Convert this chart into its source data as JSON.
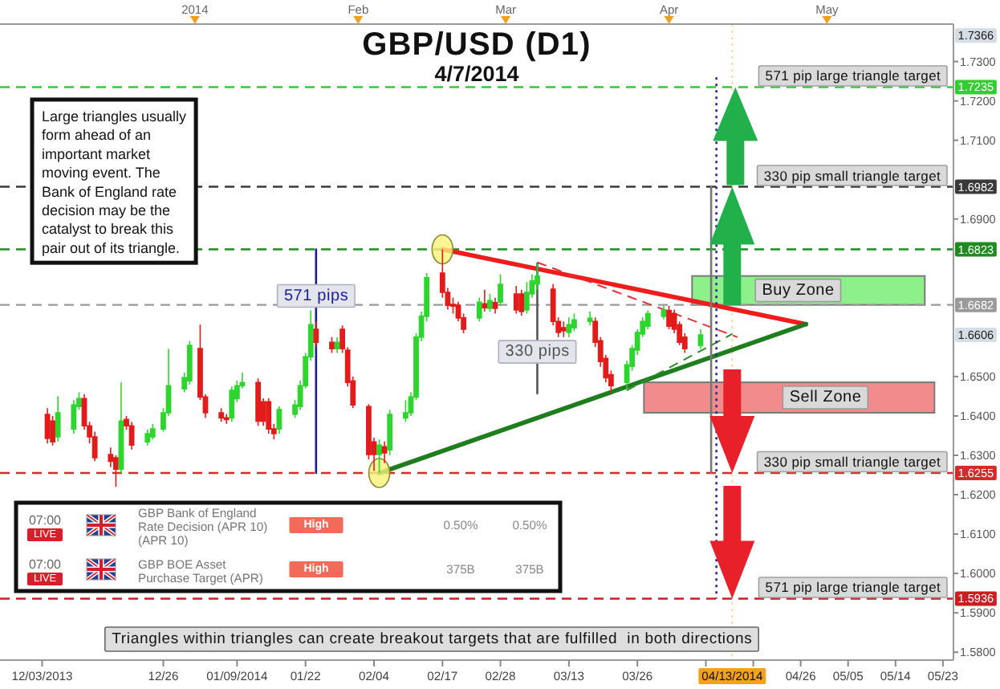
{
  "chart_data": [
    {
      "type": "candlestick",
      "title": "GBP/USD (D1)",
      "subtitle": "4/7/2014",
      "x": [
        "2013-12-04",
        "2013-12-05",
        "2013-12-06",
        "2013-12-09",
        "2013-12-10",
        "2013-12-11",
        "2013-12-12",
        "2013-12-13",
        "2013-12-16",
        "2013-12-17",
        "2013-12-18",
        "2013-12-19",
        "2013-12-20",
        "2013-12-23",
        "2013-12-24",
        "2013-12-26",
        "2013-12-27",
        "2013-12-30",
        "2013-12-31",
        "2014-01-02",
        "2014-01-03",
        "2014-01-06",
        "2014-01-07",
        "2014-01-08",
        "2014-01-09",
        "2014-01-10",
        "2014-01-13",
        "2014-01-14",
        "2014-01-15",
        "2014-01-16",
        "2014-01-17",
        "2014-01-20",
        "2014-01-21",
        "2014-01-22",
        "2014-01-23",
        "2014-01-24",
        "2014-01-27",
        "2014-01-28",
        "2014-01-29",
        "2014-01-30",
        "2014-01-31",
        "2014-02-03",
        "2014-02-04",
        "2014-02-05",
        "2014-02-06",
        "2014-02-07",
        "2014-02-10",
        "2014-02-11",
        "2014-02-12",
        "2014-02-13",
        "2014-02-14",
        "2014-02-17",
        "2014-02-18",
        "2014-02-19",
        "2014-02-20",
        "2014-02-21",
        "2014-02-24",
        "2014-02-25",
        "2014-02-26",
        "2014-02-27",
        "2014-02-28",
        "2014-03-03",
        "2014-03-04",
        "2014-03-05",
        "2014-03-06",
        "2014-03-07",
        "2014-03-10",
        "2014-03-11",
        "2014-03-12",
        "2014-03-13",
        "2014-03-14",
        "2014-03-17",
        "2014-03-18",
        "2014-03-19",
        "2014-03-20",
        "2014-03-21",
        "2014-03-24",
        "2014-03-25",
        "2014-03-26",
        "2014-03-27",
        "2014-03-28",
        "2014-03-31",
        "2014-04-01",
        "2014-04-02",
        "2014-04-03",
        "2014-04-04",
        "2014-04-07"
      ],
      "ohlc": [
        [
          1.6404,
          1.642,
          1.633,
          1.6343
        ],
        [
          1.6387,
          1.64,
          1.6325,
          1.6334
        ],
        [
          1.6347,
          1.645,
          1.6335,
          1.6408
        ],
        [
          1.6367,
          1.644,
          1.6355,
          1.6428
        ],
        [
          1.6424,
          1.646,
          1.6415,
          1.6444
        ],
        [
          1.6444,
          1.6455,
          1.6365,
          1.6375
        ],
        [
          1.6375,
          1.6385,
          1.633,
          1.6347
        ],
        [
          1.6347,
          1.636,
          1.6285,
          1.6294
        ],
        [
          1.6302,
          1.632,
          1.627,
          1.6285
        ],
        [
          1.6294,
          1.63,
          1.622,
          1.6265
        ],
        [
          1.6265,
          1.6485,
          1.6255,
          1.6387
        ],
        [
          1.6391,
          1.64,
          1.6365,
          1.6375
        ],
        [
          1.6375,
          1.6385,
          1.6315,
          1.6326
        ],
        [
          1.6334,
          1.6365,
          1.6325,
          1.6355
        ],
        [
          1.6347,
          1.638,
          1.634,
          1.6367
        ],
        [
          1.6367,
          1.642,
          1.636,
          1.6408
        ],
        [
          1.6408,
          1.657,
          1.64,
          1.6477
        ],
        [
          1.6469,
          1.651,
          1.646,
          1.6497
        ],
        [
          1.6489,
          1.659,
          1.648,
          1.6579
        ],
        [
          1.6571,
          1.6632,
          1.644,
          1.6448
        ],
        [
          1.6448,
          1.6455,
          1.6395,
          1.6408
        ],
        [
          1.6408,
          1.642,
          1.6385,
          1.6395
        ],
        [
          1.6395,
          1.6405,
          1.638,
          1.6391
        ],
        [
          1.6395,
          1.6475,
          1.6385,
          1.6465
        ],
        [
          1.6444,
          1.649,
          1.6435,
          1.6477
        ],
        [
          1.6477,
          1.651,
          1.647,
          1.6485
        ],
        [
          1.6485,
          1.6495,
          1.6375,
          1.6387
        ],
        [
          1.6436,
          1.6445,
          1.6375,
          1.6387
        ],
        [
          1.6436,
          1.6445,
          1.6355,
          1.6367
        ],
        [
          1.6367,
          1.638,
          1.634,
          1.6355
        ],
        [
          1.6367,
          1.6425,
          1.6355,
          1.6416
        ],
        [
          1.6404,
          1.644,
          1.6395,
          1.6428
        ],
        [
          1.6424,
          1.649,
          1.6415,
          1.6477
        ],
        [
          1.6477,
          1.656,
          1.647,
          1.655
        ],
        [
          1.655,
          1.6668,
          1.654,
          1.6632
        ],
        [
          1.662,
          1.664,
          1.6575,
          1.6587
        ],
        [
          1.6587,
          1.66,
          1.656,
          1.6571
        ],
        [
          1.6571,
          1.66,
          1.656,
          1.6587
        ],
        [
          1.662,
          1.663,
          1.656,
          1.6571
        ],
        [
          1.6567,
          1.6575,
          1.6475,
          1.6485
        ],
        [
          1.6489,
          1.65,
          1.642,
          1.6428
        ],
        [
          1.6424,
          1.643,
          1.629,
          1.6302
        ],
        [
          1.6334,
          1.6345,
          1.626,
          1.6302
        ],
        [
          1.6302,
          1.634,
          1.6255,
          1.6326
        ],
        [
          1.6322,
          1.6335,
          1.628,
          1.6306
        ],
        [
          1.6314,
          1.6415,
          1.63,
          1.6404
        ],
        [
          1.6395,
          1.644,
          1.6385,
          1.6408
        ],
        [
          1.6408,
          1.646,
          1.64,
          1.6448
        ],
        [
          1.6448,
          1.661,
          1.644,
          1.66
        ],
        [
          1.66,
          1.6665,
          1.659,
          1.6653
        ],
        [
          1.6653,
          1.6763,
          1.664,
          1.6751
        ],
        [
          1.6763,
          1.6823,
          1.67,
          1.6714
        ],
        [
          1.6714,
          1.6725,
          1.667,
          1.6681
        ],
        [
          1.6683,
          1.67,
          1.666,
          1.6679
        ],
        [
          1.6681,
          1.669,
          1.664,
          1.6649
        ],
        [
          1.6649,
          1.666,
          1.661,
          1.662
        ],
        [
          1.6649,
          1.67,
          1.664,
          1.6689
        ],
        [
          1.6685,
          1.672,
          1.6665,
          1.6675
        ],
        [
          1.6673,
          1.671,
          1.6665,
          1.6693
        ],
        [
          1.6688,
          1.67,
          1.666,
          1.6673
        ],
        [
          1.6689,
          1.676,
          1.668,
          1.6734
        ],
        [
          1.671,
          1.673,
          1.666,
          1.6669
        ],
        [
          1.671,
          1.672,
          1.6655,
          1.6665
        ],
        [
          1.6669,
          1.674,
          1.666,
          1.6714
        ],
        [
          1.671,
          1.676,
          1.67,
          1.6743
        ],
        [
          1.6735,
          1.6787,
          1.672,
          1.6755
        ],
        [
          1.6722,
          1.6735,
          1.663,
          1.664
        ],
        [
          1.664,
          1.665,
          1.66,
          1.6612
        ],
        [
          1.6624,
          1.664,
          1.66,
          1.6616
        ],
        [
          1.6612,
          1.665,
          1.66,
          1.6632
        ],
        [
          1.6624,
          1.666,
          1.6615,
          1.6644
        ],
        [
          1.664,
          1.6665,
          1.663,
          1.6648
        ],
        [
          1.664,
          1.665,
          1.6575,
          1.6587
        ],
        [
          1.6591,
          1.66,
          1.6525,
          1.6538
        ],
        [
          1.6546,
          1.6555,
          1.6485,
          1.6497
        ],
        [
          1.6505,
          1.6515,
          1.6457,
          1.6477
        ],
        [
          1.6485,
          1.654,
          1.6465,
          1.653
        ],
        [
          1.6526,
          1.658,
          1.6515,
          1.6571
        ],
        [
          1.6567,
          1.662,
          1.6555,
          1.6612
        ],
        [
          1.6608,
          1.665,
          1.66,
          1.664
        ],
        [
          1.6628,
          1.6668,
          1.662,
          1.666
        ],
        [
          1.6653,
          1.668,
          1.6645,
          1.6668
        ],
        [
          1.6668,
          1.668,
          1.662,
          1.6628
        ],
        [
          1.666,
          1.667,
          1.661,
          1.662
        ],
        [
          1.6632,
          1.664,
          1.658,
          1.6587
        ],
        [
          1.66,
          1.661,
          1.656,
          1.6571
        ],
        [
          1.6579,
          1.662,
          1.657,
          1.6606
        ]
      ],
      "colors": [
        "#e21b1b",
        "#e21b1b",
        "#2fd52f",
        "#2fd52f",
        "#2fd52f",
        "#e21b1b",
        "#e21b1b",
        "#e21b1b",
        "#e21b1b",
        "#e21b1b",
        "#2fd52f",
        "#e21b1b",
        "#e21b1b",
        "#2fd52f",
        "#2fd52f",
        "#2fd52f",
        "#2fd52f",
        "#2fd52f",
        "#2fd52f",
        "#e21b1b",
        "#e21b1b",
        "#e21b1b",
        "#e21b1b",
        "#2fd52f",
        "#2fd52f",
        "#2fd52f",
        "#e21b1b",
        "#e21b1b",
        "#e21b1b",
        "#e21b1b",
        "#2fd52f",
        "#2fd52f",
        "#2fd52f",
        "#2fd52f",
        "#2fd52f",
        "#e21b1b",
        "#e21b1b",
        "#2fd52f",
        "#e21b1b",
        "#e21b1b",
        "#e21b1b",
        "#e21b1b",
        "#e21b1b",
        "#2fd52f",
        "#e21b1b",
        "#2fd52f",
        "#2fd52f",
        "#2fd52f",
        "#2fd52f",
        "#2fd52f",
        "#2fd52f",
        "#e21b1b",
        "#e21b1b",
        "#e21b1b",
        "#e21b1b",
        "#e21b1b",
        "#2fd52f",
        "#e21b1b",
        "#2fd52f",
        "#e21b1b",
        "#2fd52f",
        "#e21b1b",
        "#e21b1b",
        "#2fd52f",
        "#2fd52f",
        "#2fd52f",
        "#e21b1b",
        "#e21b1b",
        "#e21b1b",
        "#2fd52f",
        "#2fd52f",
        "#2fd52f",
        "#e21b1b",
        "#e21b1b",
        "#e21b1b",
        "#e21b1b",
        "#2fd52f",
        "#2fd52f",
        "#2fd52f",
        "#2fd52f",
        "#2fd52f",
        "#2fd52f",
        "#e21b1b",
        "#e21b1b",
        "#e21b1b",
        "#e21b1b",
        "#2fd52f"
      ],
      "xlim": [
        "2013-11-25",
        "2014-05-25"
      ],
      "xticks": [
        {
          "value": "2013-12-03",
          "label": "12/03/2013"
        },
        {
          "value": "2013-12-26",
          "label": "12/26"
        },
        {
          "value": "2014-01-09",
          "label": "01/09/2014"
        },
        {
          "value": "2014-01-22",
          "label": "01/22"
        },
        {
          "value": "2014-02-04",
          "label": "02/04"
        },
        {
          "value": "2014-02-17",
          "label": "02/17"
        },
        {
          "value": "2014-02-28",
          "label": "02/28"
        },
        {
          "value": "2014-03-13",
          "label": "03/13"
        },
        {
          "value": "2014-03-26",
          "label": "03/26"
        },
        {
          "value": "2014-04-08",
          "label": null
        },
        {
          "value": "2014-04-17",
          "label": null
        },
        {
          "value": "2014-04-26",
          "label": "04/26"
        },
        {
          "value": "2014-05-05",
          "label": "05/05"
        },
        {
          "value": "2014-05-14",
          "label": "05/14"
        },
        {
          "value": "2014-05-23",
          "label": "05/23"
        }
      ],
      "x2lim": [
        "2013-11-25",
        "2014-05-25"
      ],
      "x2ticks": [
        {
          "value": "2014-01-01",
          "label": "2014"
        },
        {
          "value": "2014-02-01",
          "label": "Feb"
        },
        {
          "value": "2014-03-01",
          "label": "Mar"
        },
        {
          "value": "2014-04-01",
          "label": "Apr"
        },
        {
          "value": "2014-05-01",
          "label": "May"
        }
      ],
      "ylim": [
        1.578,
        1.7395
      ],
      "yticks": [
        {
          "value": 1.73,
          "label": "1.7300"
        },
        {
          "value": 1.72,
          "label": "1.7200"
        },
        {
          "value": 1.71,
          "label": "1.7100"
        },
        {
          "value": 1.69,
          "label": "1.6900"
        },
        {
          "value": 1.65,
          "label": "1.6500"
        },
        {
          "value": 1.64,
          "label": "1.6400"
        },
        {
          "value": 1.63,
          "label": "1.6300"
        },
        {
          "value": 1.62,
          "label": "1.6200"
        },
        {
          "value": 1.61,
          "label": "1.6100"
        },
        {
          "value": 1.6,
          "label": "1.6000"
        },
        {
          "value": 1.59,
          "label": "1.5900"
        },
        {
          "value": 1.58,
          "label": "1.5800"
        },
        1.7366,
        1.7235,
        1.6982,
        1.6823,
        1.6682,
        1.6606,
        1.6255,
        1.5936
      ],
      "ref_lines": [
        {
          "axis": "y",
          "value": 1.7235,
          "label": "571 pip large triangle target",
          "color": "#33cc33",
          "line_style": "dashed"
        },
        {
          "axis": "y",
          "value": 1.6982,
          "label": "330 pip small triangle target",
          "color": "#3a3a3a",
          "line_style": "dashed"
        },
        {
          "axis": "y",
          "value": 1.6823,
          "color": "#1f8a1f",
          "line_style": "dashed"
        },
        {
          "axis": "y",
          "value": 1.6682,
          "color": "#9a9a9a",
          "line_style": "dashed"
        },
        {
          "axis": "y",
          "value": 1.6255,
          "label": "330 pip small triangle target",
          "color": "#d42a2a",
          "line_style": "dashed"
        },
        {
          "axis": "y",
          "value": 1.5936,
          "label": "571 pip large triangle target",
          "color": "#c82020",
          "line_style": "dashed"
        },
        {
          "axis": "x",
          "value": "2014-04-13",
          "label": "04/13/2014",
          "color": "#f3a21c",
          "line_style": "dotted"
        }
      ],
      "series": [
        {
          "type": "line",
          "x": [
            "2014-02-17",
            "2014-04-27"
          ],
          "values": [
            1.6823,
            1.6633
          ],
          "color": "#ee1c1c"
        },
        {
          "type": "line",
          "x": [
            "2014-02-05",
            "2014-04-27"
          ],
          "values": [
            1.6255,
            1.6633
          ],
          "color": "#1e7e1e"
        },
        {
          "type": "line",
          "x": [
            "2014-03-07",
            "2014-04-14"
          ],
          "values": [
            1.679,
            1.66
          ],
          "color": "#e03030",
          "line_style": "dashed"
        },
        {
          "type": "line",
          "x": [
            "2014-03-24",
            "2014-04-13"
          ],
          "values": [
            1.6465,
            1.6608
          ],
          "color": "#2e8b2e",
          "line_style": "dashed"
        },
        {
          "type": "line",
          "name": "571 pips",
          "x": [
            "2014-01-24",
            "2014-01-24"
          ],
          "values": [
            1.6255,
            1.6823
          ],
          "color": "#1c1c9c"
        },
        {
          "type": "line",
          "name": "330 pips",
          "x": [
            "2014-03-07",
            "2014-03-07"
          ],
          "values": [
            1.6457,
            1.6787
          ],
          "color": "#555555"
        },
        {
          "type": "line",
          "x": [
            "2014-04-09",
            "2014-04-09"
          ],
          "values": [
            1.6982,
            1.6255
          ],
          "color": "#777777"
        },
        {
          "type": "line",
          "x": [
            "2014-04-10",
            "2014-04-10"
          ],
          "values": [
            1.726,
            1.5936
          ],
          "color": "#2a2a8a",
          "line_style": "dotted"
        }
      ],
      "annotations": [
        "Large triangles usually form ahead of an important market moving event. The Bank of England rate decision may be the catalyst to break this pair out of its triangle.",
        "Triangles within triangles can create breakout targets that are fulfilled  in both directions",
        "Buy Zone",
        "Sell Zone"
      ]
    },
    {
      "type": "other",
      "annotations": [
        "07:00",
        "LIVE",
        "GBP Bank of England Rate Decision (APR 10) (APR 10)",
        "High",
        "0.50%",
        "0.50%",
        "07:00",
        "LIVE",
        "GBP BOE Asset Purchase Target (APR)",
        "High",
        "375B",
        "375B"
      ]
    }
  ]
}
